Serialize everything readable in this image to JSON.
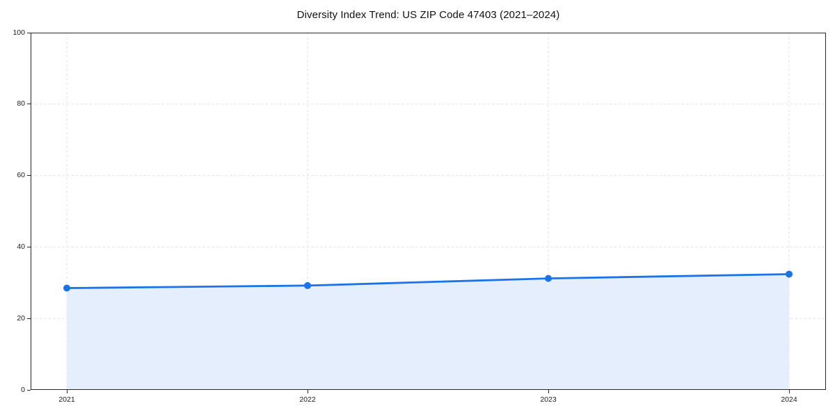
{
  "chart_data": {
    "type": "area",
    "title": "Diversity Index Trend: US ZIP Code 47403 (2021–2024)",
    "categories": [
      "2021",
      "2022",
      "2023",
      "2024"
    ],
    "values": [
      28.5,
      29.2,
      31.2,
      32.4
    ],
    "series_name": "Diversity Index",
    "xlabel": "",
    "ylabel": "",
    "ylim": [
      0,
      100
    ],
    "yticks": [
      0,
      20,
      40,
      60,
      80,
      100
    ],
    "grid": true,
    "grid_style": "dashed",
    "legend": false,
    "marker": "circle",
    "colors": {
      "line": "#1a73e8",
      "marker": "#1a73e8",
      "fill": "#e4eefc",
      "gridline": "#e2e2e2",
      "spine": "#262626",
      "tick_label": "#1c1c1c",
      "title": "#111111",
      "background": "#ffffff"
    }
  }
}
